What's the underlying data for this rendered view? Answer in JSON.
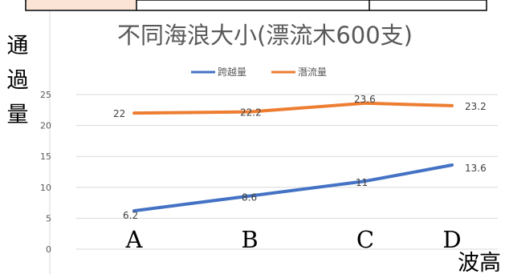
{
  "chart_data": {
    "type": "line",
    "title": "不同海浪大小(漂流木600支)",
    "ylabel": "通過量",
    "xlabel": "波高",
    "categories": [
      "A",
      "B",
      "C",
      "D"
    ],
    "y_ticks": [
      "0",
      "5",
      "10",
      "15",
      "20",
      "25"
    ],
    "ylim": [
      0,
      25
    ],
    "grid": true,
    "legend_position": "top",
    "series": [
      {
        "name": "跨越量",
        "color": "#4472C4",
        "values": [
          6.2,
          8.6,
          11,
          13.6
        ],
        "labels": [
          "6.2",
          "8.6",
          "11",
          "13.6"
        ]
      },
      {
        "name": "潛流量",
        "color": "#ED7D31",
        "values": [
          22,
          22.2,
          23.6,
          23.2
        ],
        "labels": [
          "22",
          "22.2",
          "23.6",
          "23.2"
        ]
      }
    ]
  }
}
